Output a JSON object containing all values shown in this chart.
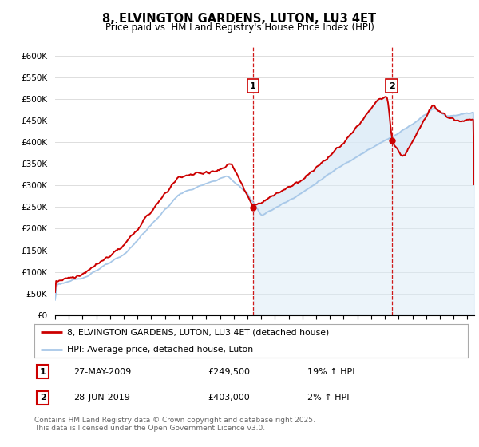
{
  "title": "8, ELVINGTON GARDENS, LUTON, LU3 4ET",
  "subtitle": "Price paid vs. HM Land Registry's House Price Index (HPI)",
  "ylim": [
    0,
    620000
  ],
  "yticks": [
    0,
    50000,
    100000,
    150000,
    200000,
    250000,
    300000,
    350000,
    400000,
    450000,
    500000,
    550000,
    600000
  ],
  "ytick_labels": [
    "£0",
    "£50K",
    "£100K",
    "£150K",
    "£200K",
    "£250K",
    "£300K",
    "£350K",
    "£400K",
    "£450K",
    "£500K",
    "£550K",
    "£600K"
  ],
  "hpi_color": "#a8c8e8",
  "hpi_fill_color": "#daeaf7",
  "price_color": "#cc0000",
  "vline_color": "#cc0000",
  "background_color": "#ffffff",
  "grid_color": "#dddddd",
  "ann1_x": 2009.41,
  "ann1_y": 249500,
  "ann2_x": 2019.49,
  "ann2_y": 403000,
  "legend_line1": "8, ELVINGTON GARDENS, LUTON, LU3 4ET (detached house)",
  "legend_line2": "HPI: Average price, detached house, Luton",
  "footer": "Contains HM Land Registry data © Crown copyright and database right 2025.\nThis data is licensed under the Open Government Licence v3.0.",
  "xmin": 1995.0,
  "xmax": 2025.5
}
